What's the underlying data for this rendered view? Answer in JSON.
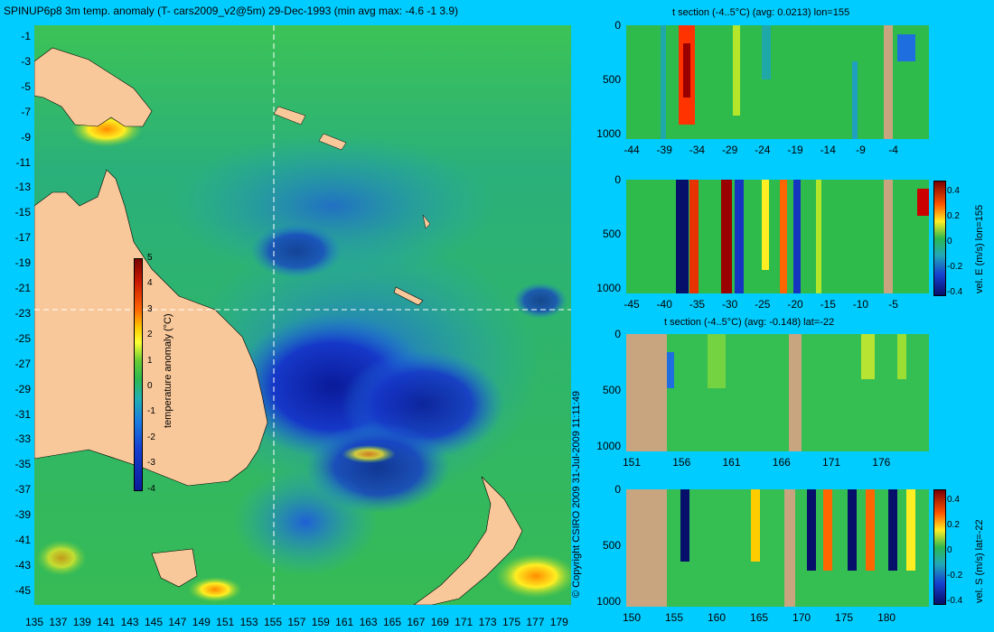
{
  "main_map": {
    "title": "SPINUP6p8 3m temp. anomaly (T- cars2009_v2@5m) 29-Dec-1993 (min avg max: -4.6 -1 3.9)",
    "x_ticks": [
      "135",
      "137",
      "139",
      "141",
      "143",
      "145",
      "147",
      "149",
      "151",
      "153",
      "155",
      "157",
      "159",
      "161",
      "163",
      "165",
      "167",
      "169",
      "171",
      "173",
      "175",
      "177",
      "179"
    ],
    "y_ticks": [
      "-1",
      "-3",
      "-5",
      "-7",
      "-9",
      "-11",
      "-13",
      "-15",
      "-17",
      "-19",
      "-21",
      "-23",
      "-25",
      "-27",
      "-29",
      "-31",
      "-33",
      "-35",
      "-37",
      "-39",
      "-41",
      "-43",
      "-45"
    ],
    "colorbar": {
      "label": "temperature anomaly (°C)",
      "ticks": [
        "5",
        "4",
        "3",
        "2",
        "1",
        "0",
        "-1",
        "-2",
        "-3",
        "-4"
      ],
      "range": [
        -4,
        5
      ]
    },
    "crosshair": {
      "lon": 155,
      "lat": -22
    },
    "copyright": "© Copyright CSIRO 2009   31-Jul-2009 11:11:49",
    "colors": {
      "land": "#f9c89a",
      "ocean_deep_cold": "#0a1a9a",
      "ocean_mid": "#3fc04f",
      "crosshair": "#ffffff"
    }
  },
  "panel1": {
    "title": "t section (-4..5°C) (avg: 0.0213) lon=155",
    "x_ticks": [
      "-44",
      "-39",
      "-34",
      "-29",
      "-24",
      "-19",
      "-14",
      "-9",
      "-4"
    ],
    "y_ticks": [
      "0",
      "500",
      "1000"
    ]
  },
  "panel2": {
    "x_ticks": [
      "-45",
      "-40",
      "-35",
      "-30",
      "-25",
      "-20",
      "-15",
      "-10",
      "-5"
    ],
    "y_ticks": [
      "0",
      "500",
      "1000"
    ],
    "colorbar_label": "vel. E (m/s) lon=155",
    "colorbar_ticks": [
      "0.4",
      "0.2",
      "0",
      "-0.2",
      "-0.4"
    ]
  },
  "panel3": {
    "title": "t section (-4..5°C) (avg: -0.148) lat=-22",
    "x_ticks": [
      "151",
      "156",
      "161",
      "166",
      "171",
      "176"
    ],
    "y_ticks": [
      "0",
      "500",
      "1000"
    ]
  },
  "panel4": {
    "x_ticks": [
      "150",
      "155",
      "160",
      "165",
      "170",
      "175",
      "180"
    ],
    "y_ticks": [
      "0",
      "500",
      "1000"
    ],
    "colorbar_label": "vel. S (m/s) lat=-22",
    "colorbar_ticks": [
      "0.4",
      "0.2",
      "0",
      "-0.2",
      "-0.4"
    ]
  }
}
